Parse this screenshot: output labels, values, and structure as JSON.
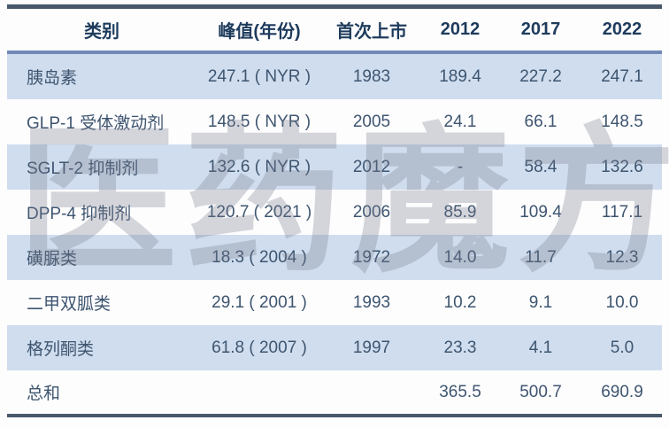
{
  "page": {
    "watermark": "医药魔方"
  },
  "colors": {
    "top_border": "#47596b",
    "bottom_border": "#47596b",
    "header_rule": "#7289b7",
    "row_alt_background": "#cfddee",
    "row_background": "#fdfdfe",
    "header_text": "#1e3b5c",
    "cell_text": "#3e5570",
    "watermark_text": "rgba(118,124,138,0.30)"
  },
  "chart_data": {
    "type": "table",
    "columns": [
      "类别",
      "峰值(年份)",
      "首次上市",
      "2012",
      "2017",
      "2022"
    ],
    "rows": [
      [
        "胰岛素",
        "247.1 ( NYR )",
        "1983",
        "189.4",
        "227.2",
        "247.1"
      ],
      [
        "GLP-1 受体激动剂",
        "148.5 ( NYR )",
        "2005",
        "24.1",
        "66.1",
        "148.5"
      ],
      [
        "SGLT-2 抑制剂",
        "132.6 ( NYR )",
        "2012",
        "-",
        "58.4",
        "132.6"
      ],
      [
        "DPP-4 抑制剂",
        "120.7 ( 2021 )",
        "2006",
        "85.9",
        "109.4",
        "117.1"
      ],
      [
        "磺脲类",
        "18.3 ( 2004 )",
        "1972",
        "14.0",
        "11.7",
        "12.3"
      ],
      [
        "二甲双胍类",
        "29.1 ( 2001 )",
        "1993",
        "10.2",
        "9.1",
        "10.0"
      ],
      [
        "格列酮类",
        "61.8 ( 2007 )",
        "1997",
        "23.3",
        "4.1",
        "5.0"
      ]
    ],
    "footer_row": [
      "总和",
      "",
      "",
      "365.5",
      "500.7",
      "690.9"
    ],
    "notes": {
      "alternating_row_shading": "rows 1,3,5,7 shaded light blue",
      "legend_position": "none",
      "grid": "off"
    }
  }
}
